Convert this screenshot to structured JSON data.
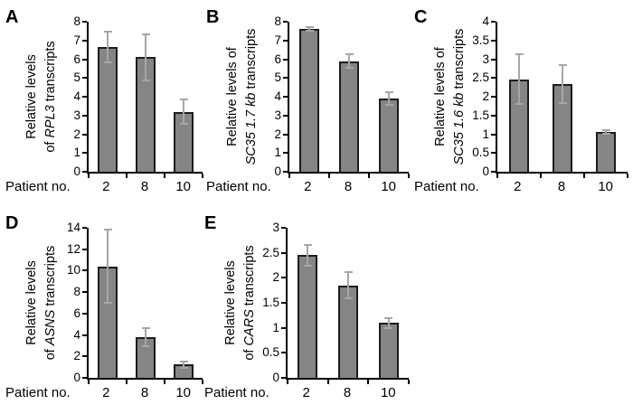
{
  "page": {
    "background": "#ffffff"
  },
  "colors": {
    "bar_fill": "#858585",
    "bar_border": "#1c1c1c",
    "error_bar": "#a6a6a6",
    "axis": "#000000",
    "text": "#000000"
  },
  "chart_data": [
    {
      "type": "bar",
      "letter": "A",
      "ylabel_plain": "Relative levels of RPL3 transcripts",
      "ylabel": {
        "line1": "Relative levels",
        "line2_pre": "of ",
        "line2_italic": "RPL3",
        "line2_post": " transcripts"
      },
      "xlabel": "Patient no.",
      "categories": [
        "2",
        "8",
        "10"
      ],
      "values": [
        6.65,
        6.1,
        3.2
      ],
      "errors": [
        0.8,
        1.25,
        0.65
      ],
      "ylim": [
        0,
        8
      ],
      "yticks": [
        "0",
        "1",
        "2",
        "3",
        "4",
        "5",
        "6",
        "7",
        "8"
      ],
      "grid": false,
      "legend": null
    },
    {
      "type": "bar",
      "letter": "B",
      "ylabel_plain": "Relative levels of SC35 1.7 kb transcripts",
      "ylabel": {
        "line1": "Relative levels of",
        "line2_pre": "",
        "line2_italic": "SC35 1.7 kb",
        "line2_post": " transcripts"
      },
      "xlabel": "Patient no.",
      "categories": [
        "2",
        "8",
        "10"
      ],
      "values": [
        7.62,
        5.9,
        3.9
      ],
      "errors": [
        0.08,
        0.35,
        0.35
      ],
      "ylim": [
        0,
        8
      ],
      "yticks": [
        "0",
        "1",
        "2",
        "3",
        "4",
        "5",
        "6",
        "7",
        "8"
      ],
      "grid": false,
      "legend": null
    },
    {
      "type": "bar",
      "letter": "C",
      "ylabel_plain": "Relative levels of SC35 1.6 kb transcripts",
      "ylabel": {
        "line1": "Relative levels of",
        "line2_pre": "",
        "line2_italic": "SC35 1.6 kb",
        "line2_post": " transcripts"
      },
      "xlabel": "Patient no.",
      "categories": [
        "2",
        "8",
        "10"
      ],
      "values": [
        2.47,
        2.33,
        1.07
      ],
      "errors": [
        0.66,
        0.51,
        0.05
      ],
      "ylim": [
        0,
        4
      ],
      "yticks": [
        "0",
        "0.5",
        "1",
        "1.5",
        "2",
        "2.5",
        "3",
        "3.5",
        "4"
      ],
      "grid": false,
      "legend": null
    },
    {
      "type": "bar",
      "letter": "D",
      "ylabel_plain": "Relative levels of ASNS transcripts",
      "ylabel": {
        "line1": "Relative levels",
        "line2_pre": "of ",
        "line2_italic": "ASNS",
        "line2_post": " transcripts"
      },
      "xlabel": "Patient no.",
      "categories": [
        "2",
        "8",
        "10"
      ],
      "values": [
        10.4,
        3.8,
        1.25
      ],
      "errors": [
        3.4,
        0.85,
        0.3
      ],
      "ylim": [
        0,
        14
      ],
      "yticks": [
        "0",
        "2",
        "4",
        "6",
        "8",
        "10",
        "12",
        "14"
      ],
      "grid": false,
      "legend": null
    },
    {
      "type": "bar",
      "letter": "E",
      "ylabel_plain": "Relative levels of CARS transcripts",
      "ylabel": {
        "line1": "Relative levels",
        "line2_pre": "of ",
        "line2_italic": "CARS",
        "line2_post": " transcripts"
      },
      "xlabel": "Patient no.",
      "categories": [
        "2",
        "8",
        "10"
      ],
      "values": [
        2.45,
        1.85,
        1.1
      ],
      "errors": [
        0.21,
        0.26,
        0.1
      ],
      "ylim": [
        0,
        3
      ],
      "yticks": [
        "0",
        "0.5",
        "1",
        "1.5",
        "2",
        "2.5",
        "3"
      ],
      "grid": false,
      "legend": null
    }
  ]
}
